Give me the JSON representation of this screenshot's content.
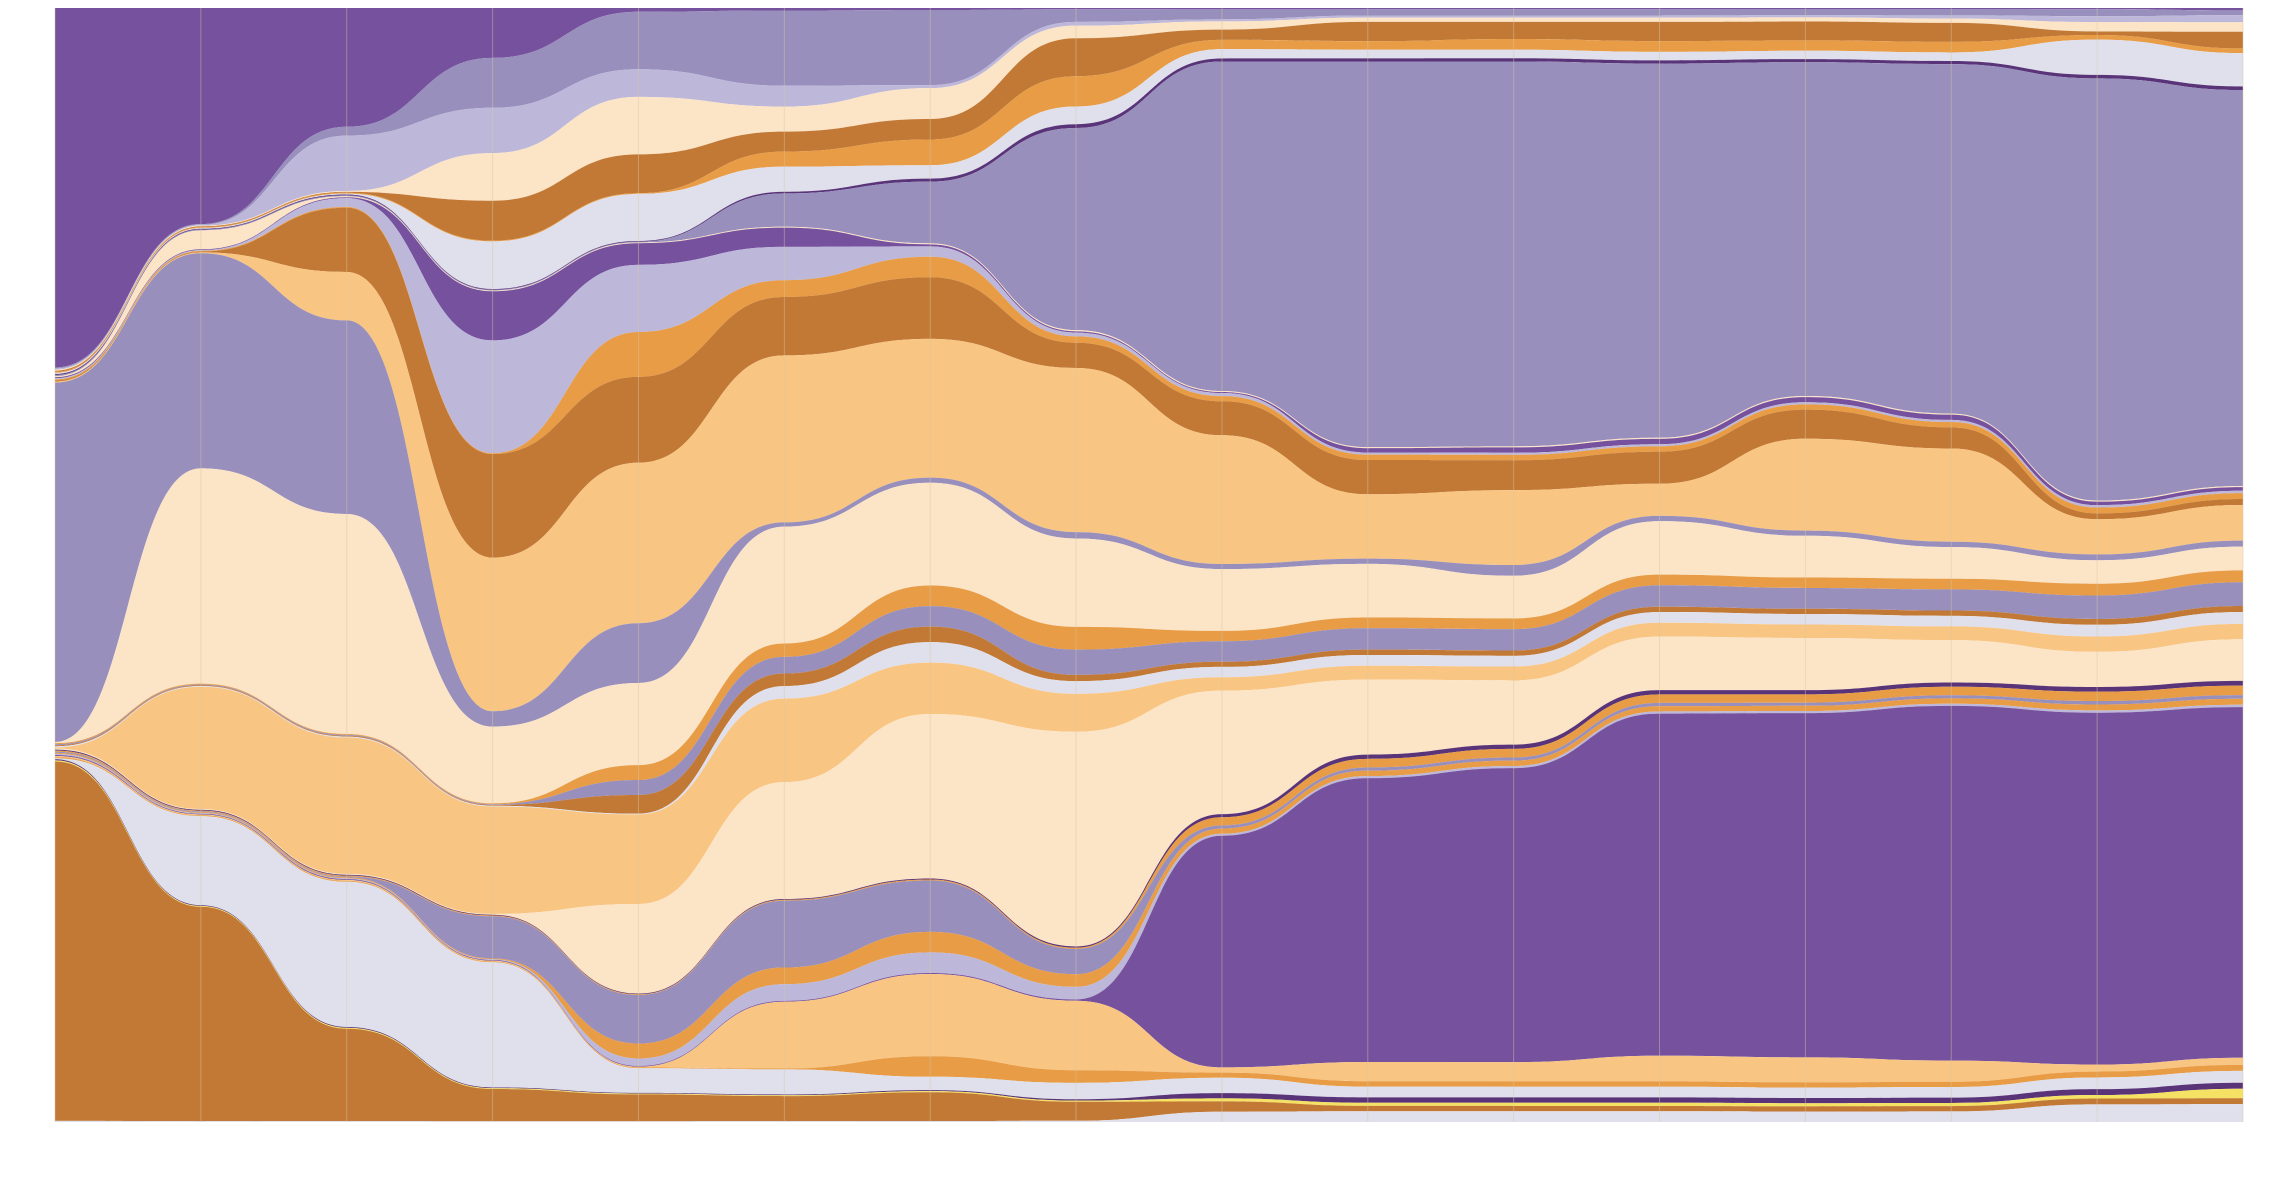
{
  "chart_data": {
    "type": "area",
    "subtype": "streamgraph-100-percent",
    "title": "",
    "xlabel": "",
    "ylabel": "",
    "x": [
      0,
      1,
      2,
      3,
      4,
      5,
      6,
      7,
      8,
      9,
      10,
      11,
      12,
      13,
      14,
      15
    ],
    "ylim": [
      0,
      100
    ],
    "grid": true,
    "legend": "none",
    "colors": {
      "purple": "#76519e",
      "lavender": "#988fbc",
      "lilac": "#bdb8da",
      "pale": "#dfe0ec",
      "cream": "#fce4c6",
      "peach": "#f9c582",
      "orange": "#e79c45",
      "brown": "#c27936",
      "dark": "#5a3478",
      "yellow": "#f5e264",
      "grid": "#d8c7a3"
    },
    "series": [
      {
        "color": "purple",
        "values": [
          33.3,
          27.4,
          13.5,
          6.5,
          0.5,
          0.3,
          0.2,
          0.1,
          0.1,
          0.1,
          0.1,
          0.1,
          0.1,
          0.1,
          0.1,
          0.2
        ]
      },
      {
        "color": "lavender",
        "values": [
          0.1,
          0.1,
          1.0,
          6.5,
          7.7,
          9.0,
          7.3,
          1.0,
          1.0,
          0.6,
          0.6,
          0.6,
          0.6,
          0.6,
          0.6,
          0.4
        ]
      },
      {
        "color": "lilac",
        "values": [
          0.1,
          0.1,
          6.3,
          5.9,
          3.7,
          2.5,
          0.3,
          0.3,
          0.2,
          0.2,
          0.2,
          0.2,
          0.2,
          0.3,
          0.5,
          0.6
        ]
      },
      {
        "color": "cream",
        "values": [
          0.1,
          0.1,
          0.1,
          6.2,
          7.7,
          3.0,
          3.0,
          1.0,
          0.8,
          0.4,
          0.4,
          0.4,
          0.4,
          0.4,
          0.8,
          0.8
        ]
      },
      {
        "color": "brown",
        "values": [
          0.1,
          0.1,
          0.1,
          5.2,
          5.2,
          2.4,
          2.0,
          3.0,
          1.0,
          1.8,
          1.6,
          1.8,
          1.8,
          1.8,
          0.3,
          1.4
        ]
      },
      {
        "color": "orange",
        "values": [
          0.1,
          0.1,
          0.1,
          0.1,
          0.1,
          1.8,
          2.5,
          2.4,
          0.9,
          0.8,
          1.0,
          1.0,
          1.0,
          1.0,
          0.4,
          0.4
        ]
      },
      {
        "color": "pale",
        "values": [
          0.1,
          0.1,
          0.1,
          6.2,
          6.3,
          3.0,
          1.3,
          1.4,
          0.9,
          0.8,
          0.8,
          0.8,
          0.8,
          0.8,
          3.0,
          2.8
        ]
      },
      {
        "color": "dark",
        "values": [
          0.1,
          0.1,
          0.1,
          0.1,
          0.1,
          0.2,
          0.3,
          0.3,
          0.3,
          0.3,
          0.3,
          0.3,
          0.3,
          0.3,
          0.3,
          0.3
        ]
      },
      {
        "color": "lavender",
        "values": [
          0.1,
          0.1,
          0.1,
          0.1,
          0.1,
          4.0,
          6.0,
          16.0,
          32.0,
          36.0,
          36.0,
          35.0,
          32.0,
          33.0,
          36.0,
          33.3
        ]
      },
      {
        "color": "cream",
        "values": [
          0.1,
          2.4,
          0.1,
          0.1,
          0.1,
          0.1,
          0.1,
          0.1,
          0.1,
          0.1,
          0.1,
          0.1,
          0.1,
          0.1,
          0.1,
          0.1
        ]
      },
      {
        "color": "purple",
        "values": [
          0.1,
          0.1,
          0.1,
          6.4,
          2.9,
          2.3,
          0.2,
          0.1,
          0.1,
          0.4,
          0.5,
          0.5,
          0.5,
          0.5,
          0.3,
          0.3
        ]
      },
      {
        "color": "lilac",
        "values": [
          0.1,
          0.1,
          1.0,
          14.7,
          9.0,
          4.0,
          1.0,
          0.3,
          0.3,
          0.2,
          0.2,
          0.2,
          0.2,
          0.2,
          0.2,
          0.2
        ]
      },
      {
        "color": "orange",
        "values": [
          0.1,
          0.1,
          0.1,
          0.1,
          6.0,
          2.0,
          2.0,
          0.5,
          0.5,
          0.5,
          0.5,
          0.5,
          0.5,
          0.5,
          0.5,
          0.5
        ]
      },
      {
        "color": "brown",
        "values": [
          0.1,
          0.1,
          7.3,
          13.5,
          11.5,
          7.0,
          6.0,
          2.0,
          3.3,
          3.2,
          2.8,
          3.0,
          2.8,
          2.0,
          0.5,
          0.5
        ]
      },
      {
        "color": "peach",
        "values": [
          0.1,
          0.1,
          5.5,
          20.0,
          21.5,
          20.0,
          13.5,
          13.0,
          12.5,
          6.0,
          7.0,
          3.0,
          8.8,
          8.8,
          3.0,
          3.0
        ]
      },
      {
        "color": "lavender",
        "values": [
          33.3,
          27.3,
          22.0,
          2.0,
          8.0,
          0.5,
          0.5,
          0.5,
          0.5,
          0.5,
          1.0,
          0.5,
          0.5,
          0.5,
          0.5,
          0.5
        ]
      },
      {
        "color": "cream",
        "values": [
          0.1,
          27.3,
          25.0,
          10.0,
          11.0,
          14.0,
          10.0,
          7.0,
          6.0,
          5.0,
          4.0,
          5.0,
          4.0,
          3.0,
          2.0,
          2.0
        ]
      },
      {
        "color": "orange",
        "values": [
          0.1,
          0.1,
          0.1,
          0.1,
          2.0,
          1.6,
          2.0,
          1.8,
          1.0,
          1.0,
          1.0,
          1.0,
          1.0,
          1.0,
          1.0,
          1.0
        ]
      },
      {
        "color": "lavender",
        "values": [
          0.1,
          0.1,
          0.1,
          0.1,
          2.0,
          2.0,
          2.0,
          2.0,
          2.0,
          2.0,
          2.0,
          2.0,
          2.0,
          2.0,
          2.0,
          2.0
        ]
      },
      {
        "color": "brown",
        "values": [
          0.1,
          0.1,
          0.1,
          0.1,
          2.5,
          1.5,
          1.5,
          0.5,
          0.5,
          0.5,
          0.5,
          0.5,
          0.5,
          0.5,
          0.5,
          0.5
        ]
      },
      {
        "color": "pale",
        "values": [
          0.1,
          0.1,
          0.1,
          0.1,
          0.1,
          1.5,
          2.0,
          1.0,
          1.0,
          1.0,
          1.0,
          1.0,
          1.0,
          1.0,
          1.0,
          1.0
        ]
      },
      {
        "color": "peach",
        "values": [
          0.1,
          15.5,
          15.5,
          14.0,
          12.0,
          10.0,
          5.0,
          3.0,
          1.3,
          1.3,
          1.3,
          1.3,
          1.3,
          1.3,
          1.3,
          1.3
        ]
      },
      {
        "color": "cream",
        "values": [
          0.1,
          0.1,
          0.1,
          0.1,
          12.0,
          14.0,
          16.0,
          17.0,
          12.0,
          7.0,
          6.0,
          5.0,
          5.0,
          4.0,
          3.0,
          3.5
        ]
      },
      {
        "color": "dark",
        "values": [
          0.1,
          0.1,
          0.1,
          0.1,
          0.1,
          0.1,
          0.1,
          0.1,
          0.3,
          0.4,
          0.4,
          0.4,
          0.4,
          0.4,
          0.4,
          0.4
        ]
      },
      {
        "color": "orange",
        "values": [
          0.1,
          0.1,
          0.1,
          0.1,
          0.1,
          0.1,
          0.1,
          0.1,
          0.8,
          0.8,
          0.8,
          0.8,
          0.8,
          0.8,
          0.8,
          0.8
        ]
      },
      {
        "color": "lavender",
        "values": [
          0.1,
          0.1,
          0.1,
          5.5,
          6.5,
          8.0,
          5.0,
          2.0,
          0.3,
          0.3,
          0.3,
          0.3,
          0.3,
          0.3,
          0.3,
          0.3
        ]
      },
      {
        "color": "orange",
        "values": [
          0.1,
          0.1,
          0.1,
          0.1,
          2.0,
          2.0,
          2.0,
          1.0,
          0.5,
          0.5,
          0.5,
          0.5,
          0.5,
          0.5,
          0.5,
          0.5
        ]
      },
      {
        "color": "lilac",
        "values": [
          0.1,
          0.1,
          0.1,
          0.1,
          1.0,
          2.0,
          2.0,
          1.0,
          0.2,
          0.2,
          0.2,
          0.2,
          0.2,
          0.2,
          0.2,
          0.2
        ]
      },
      {
        "color": "purple",
        "values": [
          0.1,
          0.1,
          0.1,
          0.1,
          0.1,
          0.1,
          0.1,
          0.1,
          22.5,
          26.5,
          27.5,
          32.0,
          33.0,
          33.5,
          30.0,
          29.5
        ]
      },
      {
        "color": "peach",
        "values": [
          0.1,
          0.1,
          0.1,
          0.1,
          0.1,
          8.0,
          8.0,
          5.5,
          0.5,
          1.8,
          1.8,
          2.4,
          2.4,
          2.0,
          0.6,
          0.6
        ]
      },
      {
        "color": "orange",
        "values": [
          0.1,
          0.1,
          0.1,
          0.1,
          0.1,
          0.1,
          2.0,
          1.0,
          0.5,
          0.5,
          0.5,
          0.5,
          0.5,
          0.5,
          0.5,
          0.5
        ]
      },
      {
        "color": "pale",
        "values": [
          0.1,
          11.3,
          16.5,
          16.3,
          3.3,
          3.0,
          1.3,
          1.3,
          1.5,
          1.0,
          1.0,
          1.0,
          1.0,
          1.0,
          1.0,
          1.0
        ]
      },
      {
        "color": "dark",
        "values": [
          0.1,
          0.1,
          0.1,
          0.1,
          0.1,
          0.1,
          0.1,
          0.1,
          0.5,
          0.5,
          0.5,
          0.5,
          0.5,
          0.5,
          0.5,
          0.5
        ]
      },
      {
        "color": "yellow",
        "values": [
          0.1,
          0.1,
          0.1,
          0.1,
          0.1,
          0.1,
          0.1,
          0.1,
          0.3,
          0.3,
          0.3,
          0.3,
          0.3,
          0.3,
          0.3,
          0.8
        ]
      },
      {
        "color": "brown",
        "values": [
          33.3,
          27.2,
          10.5,
          4.2,
          3.6,
          3.0,
          2.8,
          1.5,
          1.0,
          0.5,
          0.5,
          0.5,
          0.5,
          0.5,
          0.5,
          0.5
        ]
      },
      {
        "color": "pale",
        "values": [
          0.1,
          0.1,
          0.1,
          0.1,
          0.1,
          0.1,
          0.1,
          0.1,
          1.0,
          1.0,
          1.0,
          1.0,
          1.0,
          1.0,
          1.5,
          1.5
        ]
      }
    ]
  }
}
